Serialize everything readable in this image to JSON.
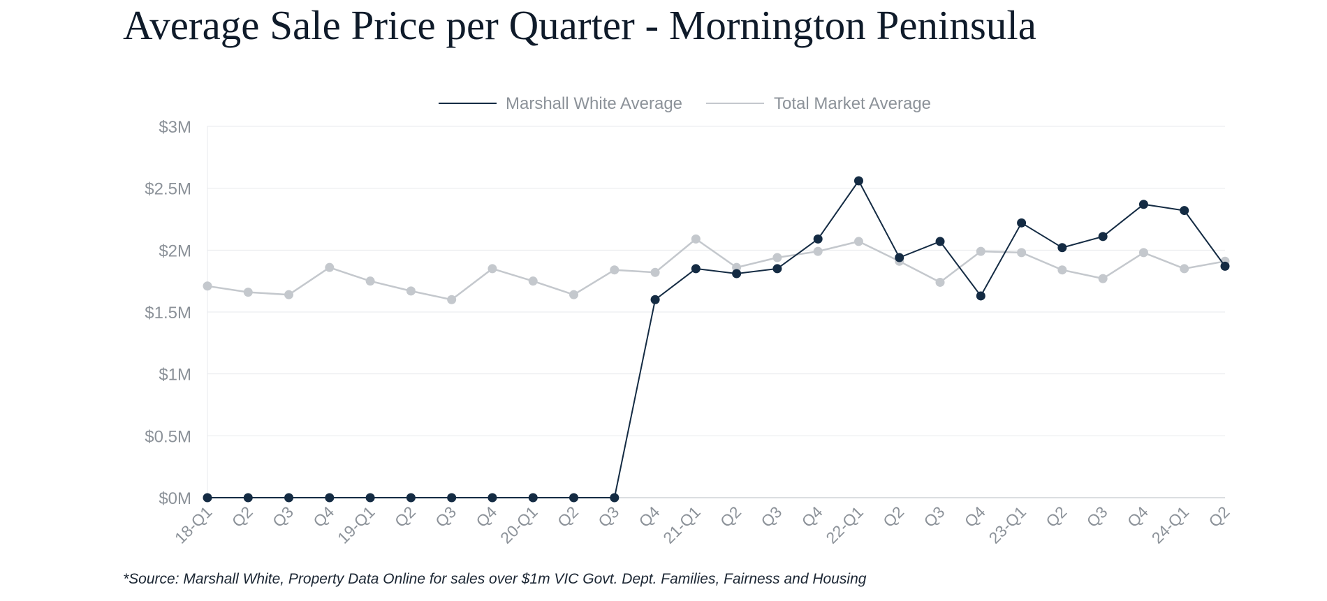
{
  "title": "Average Sale Price per Quarter - Mornington Peninsula",
  "source": "*Source: Marshall White, Property Data Online for sales over $1m VIC Govt. Dept. Families, Fairness and Housing",
  "chart_data": {
    "type": "line",
    "categories": [
      "18-Q1",
      "Q2",
      "Q3",
      "Q4",
      "19-Q1",
      "Q2",
      "Q3",
      "Q4",
      "20-Q1",
      "Q2",
      "Q3",
      "Q4",
      "21-Q1",
      "Q2",
      "Q3",
      "Q4",
      "22-Q1",
      "Q2",
      "Q3",
      "Q4",
      "23-Q1",
      "Q2",
      "Q3",
      "Q4",
      "24-Q1",
      "Q2"
    ],
    "series": [
      {
        "name": "Marshall White Average",
        "color": "#142b43",
        "values": [
          0,
          0,
          0,
          0,
          0,
          0,
          0,
          0,
          0,
          0,
          0,
          1.6,
          1.85,
          1.81,
          1.85,
          2.09,
          2.56,
          1.94,
          2.07,
          1.63,
          2.22,
          2.02,
          2.11,
          2.37,
          2.32,
          1.87
        ]
      },
      {
        "name": "Total Market Average",
        "color": "#c4c8cd",
        "values": [
          1.71,
          1.66,
          1.64,
          1.86,
          1.75,
          1.67,
          1.6,
          1.85,
          1.75,
          1.64,
          1.84,
          1.82,
          2.09,
          1.86,
          1.94,
          1.99,
          2.07,
          1.91,
          1.74,
          1.99,
          1.98,
          1.84,
          1.77,
          1.98,
          1.85,
          1.91
        ]
      }
    ],
    "y_ticks": [
      "$0M",
      "$0.5M",
      "$1M",
      "$1.5M",
      "$2M",
      "$2.5M",
      "$3M"
    ],
    "y_tick_values": [
      0,
      0.5,
      1,
      1.5,
      2,
      2.5,
      3
    ],
    "ylim": [
      0,
      3
    ],
    "unit": "$M",
    "grid": true,
    "legend_position": "top-center"
  }
}
